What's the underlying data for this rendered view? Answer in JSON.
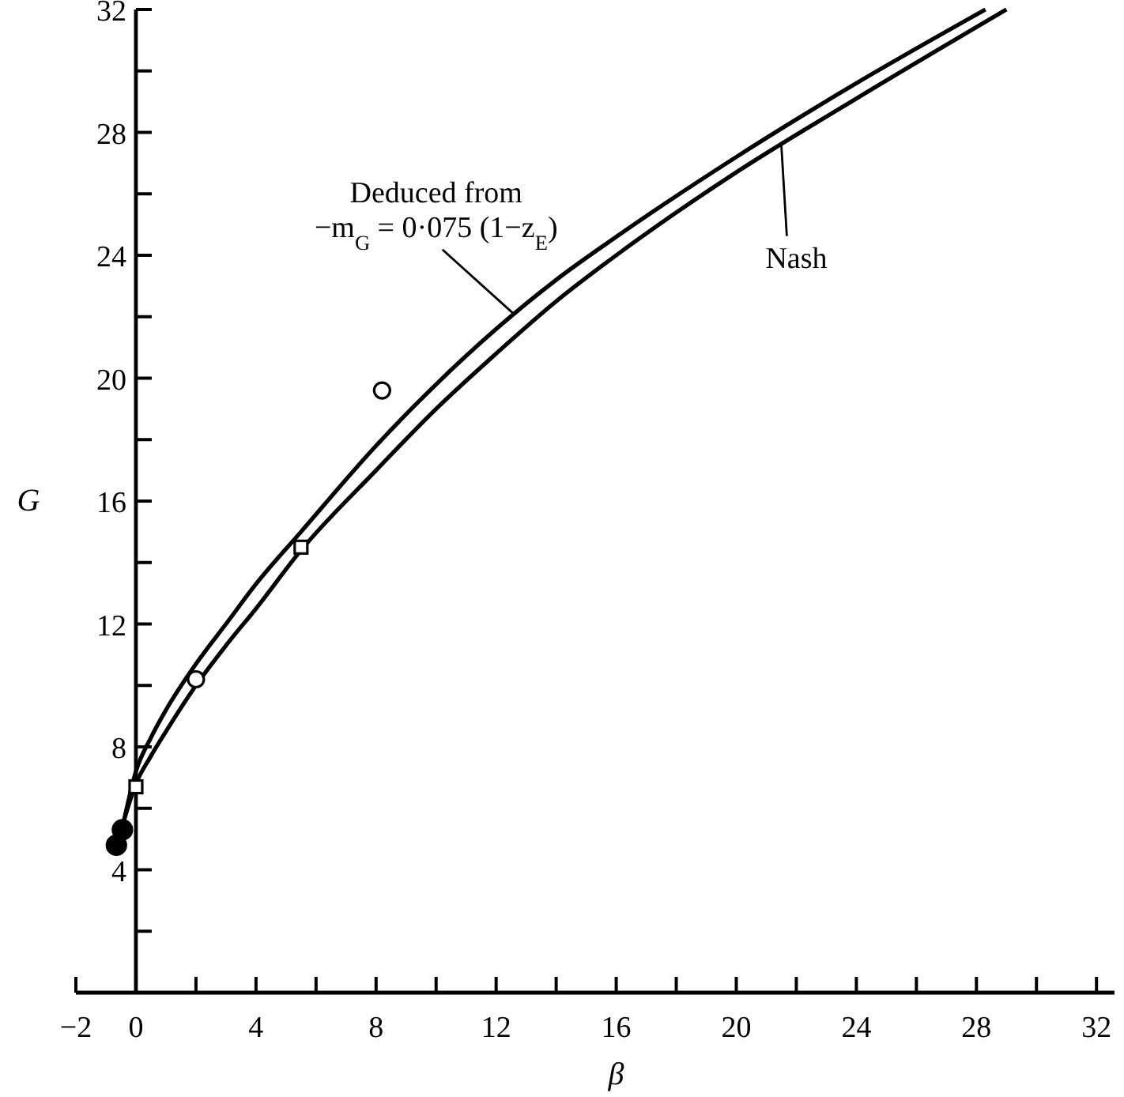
{
  "chart_data": {
    "type": "line",
    "xlabel": "β",
    "ylabel": "G",
    "xlim": [
      -2,
      32.6
    ],
    "ylim": [
      0,
      32
    ],
    "xticks": [
      {
        "value": -2,
        "label": "−2"
      },
      0,
      {
        "value": 2,
        "label": null
      },
      4,
      {
        "value": 6,
        "label": null
      },
      8,
      {
        "value": 10,
        "label": null
      },
      12,
      {
        "value": 14,
        "label": null
      },
      16,
      {
        "value": 18,
        "label": null
      },
      20,
      {
        "value": 22,
        "label": null
      },
      24,
      {
        "value": 26,
        "label": null
      },
      28,
      {
        "value": 30,
        "label": null
      },
      32
    ],
    "yticks": [
      {
        "value": 2,
        "label": null
      },
      4,
      {
        "value": 6,
        "label": null
      },
      8,
      {
        "value": 10,
        "label": null
      },
      12,
      {
        "value": 14,
        "label": null
      },
      16,
      {
        "value": 18,
        "label": null
      },
      20,
      {
        "value": 22,
        "label": null
      },
      24,
      {
        "value": 26,
        "label": null
      },
      28,
      {
        "value": 30,
        "label": null
      },
      32
    ],
    "grid": false,
    "legend": false,
    "line_style": "solid",
    "series": [
      {
        "name": "Deduced from\n−m$_{G}$ = 0·075 (1−z$_{E}$)",
        "color": "#000000",
        "marker": "none",
        "x": [
          -0.4,
          0,
          0.5,
          1,
          2,
          3,
          4,
          5.5,
          8,
          10,
          12,
          14,
          16,
          20,
          24,
          28.3
        ],
        "values": [
          5.6,
          7.2,
          8.3,
          9.2,
          10.7,
          12.0,
          13.3,
          15.0,
          17.8,
          19.8,
          21.6,
          23.2,
          24.6,
          27.2,
          29.6,
          32.0
        ]
      },
      {
        "name": "Nash",
        "color": "#000000",
        "marker": "none",
        "x": [
          -0.4,
          0,
          0.5,
          1,
          2,
          3,
          4,
          5.5,
          8,
          10,
          12,
          14,
          16,
          20,
          24,
          29.0
        ],
        "values": [
          5.6,
          6.8,
          7.7,
          8.5,
          10.0,
          11.3,
          12.5,
          14.4,
          17.0,
          19.0,
          20.8,
          22.5,
          24.0,
          26.7,
          29.1,
          32.0
        ]
      },
      {
        "type": "scatter",
        "marker": "circle",
        "color": "#ffffff",
        "x": [
          2,
          8.2
        ],
        "values": [
          10.2,
          19.6
        ]
      },
      {
        "type": "scatter",
        "marker": "square",
        "color": "#ffffff",
        "x": [
          0,
          5.5
        ],
        "values": [
          6.7,
          14.5
        ]
      },
      {
        "type": "scatter",
        "marker": "circle",
        "color": "#000000",
        "x": [
          -0.65,
          -0.45
        ],
        "values": [
          4.8,
          5.3
        ]
      }
    ]
  }
}
